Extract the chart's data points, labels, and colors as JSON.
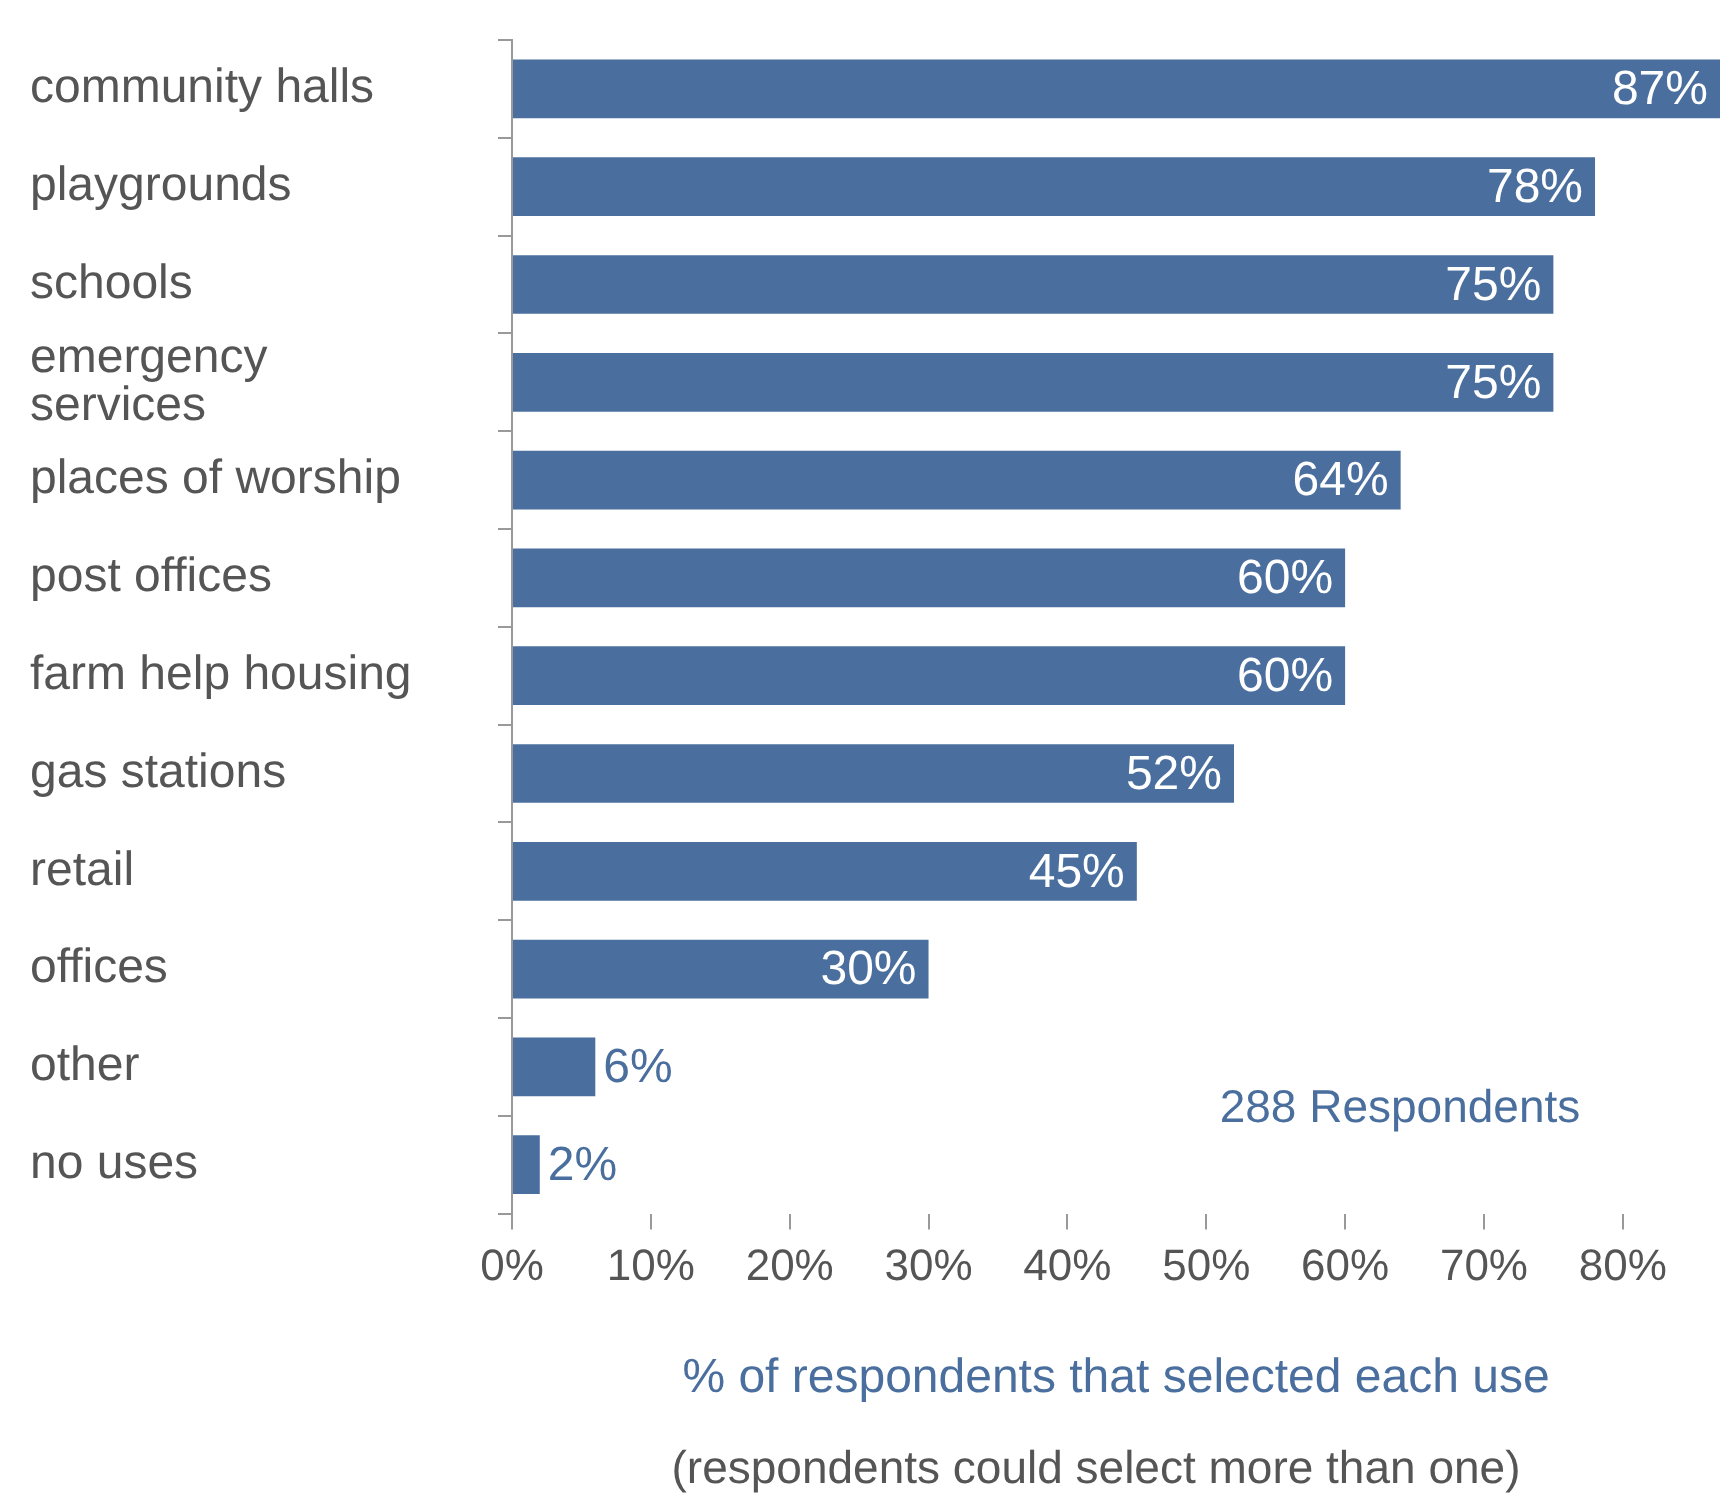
{
  "chart_data": {
    "type": "bar",
    "orientation": "horizontal",
    "categories": [
      "community halls",
      "playgrounds",
      "schools",
      "emergency services",
      "places of worship",
      "post offices",
      "farm help housing",
      "gas stations",
      "retail",
      "offices",
      "other",
      "no uses"
    ],
    "values": [
      87,
      78,
      75,
      75,
      64,
      60,
      60,
      52,
      45,
      30,
      6,
      2
    ],
    "value_labels": [
      "87%",
      "78%",
      "75%",
      "75%",
      "64%",
      "60%",
      "60%",
      "52%",
      "45%",
      "30%",
      "6%",
      "2%"
    ],
    "color": "#4a6f9e",
    "xlim": [
      0,
      87
    ],
    "xticks": [
      {
        "value": 0,
        "label": "0%"
      },
      {
        "value": 10,
        "label": "10%"
      },
      {
        "value": 20,
        "label": "20%"
      },
      {
        "value": 30,
        "label": "30%"
      },
      {
        "value": 40,
        "label": "40%"
      },
      {
        "value": 50,
        "label": "50%"
      },
      {
        "value": 60,
        "label": "60%"
      },
      {
        "value": 70,
        "label": "70%"
      },
      {
        "value": 80,
        "label": "80%"
      }
    ],
    "xlabel": "% of respondents that selected each use",
    "annotations": [
      "288 Respondents",
      "(respondents could select more than one)"
    ],
    "grid": false,
    "legend": false
  }
}
